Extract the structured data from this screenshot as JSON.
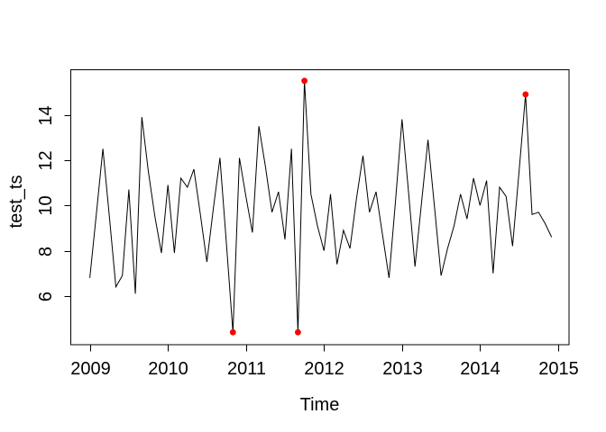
{
  "figure": {
    "background": "#FFFFFF",
    "axis_color": "#000000"
  },
  "chart_data": {
    "type": "line",
    "title": "",
    "xlabel": "Time",
    "ylabel": "test_ts",
    "x_ticks": [
      2009,
      2010,
      2011,
      2012,
      2013,
      2014,
      2015
    ],
    "y_ticks": [
      6,
      8,
      10,
      12,
      14
    ],
    "xlim": [
      2008.75,
      2015.14
    ],
    "ylim": [
      3.85,
      16.01
    ],
    "x_start": 2009.0,
    "frequency": 12,
    "grid": false,
    "legend": null,
    "series": [
      {
        "name": "test_ts",
        "color": "#000000",
        "values": [
          6.8,
          9.6,
          12.5,
          9.5,
          6.4,
          6.9,
          10.7,
          6.1,
          13.9,
          11.5,
          9.5,
          7.9,
          10.9,
          7.9,
          11.2,
          10.8,
          11.6,
          9.6,
          7.5,
          9.9,
          12.1,
          8.3,
          4.4,
          12.1,
          10.4,
          8.8,
          13.5,
          11.7,
          9.7,
          10.6,
          8.5,
          12.5,
          4.4,
          15.5,
          10.5,
          9.1,
          8.0,
          10.5,
          7.4,
          8.9,
          8.1,
          10.3,
          12.2,
          9.7,
          10.6,
          8.7,
          6.8,
          10.2,
          13.8,
          10.6,
          7.3,
          10.1,
          12.9,
          9.9,
          6.9,
          8.1,
          9.1,
          10.5,
          9.4,
          11.2,
          10.0,
          11.1,
          7.0,
          10.8,
          10.4,
          8.2,
          11.5,
          14.9,
          9.6,
          9.7,
          9.2,
          8.6
        ]
      }
    ],
    "outliers": {
      "color": "#FF0000",
      "marker": "filled-circle",
      "points": [
        {
          "time": 2010.8333,
          "value": 4.4
        },
        {
          "time": 2011.6667,
          "value": 4.4
        },
        {
          "time": 2011.75,
          "value": 15.5
        },
        {
          "time": 2014.5833,
          "value": 14.9
        }
      ]
    }
  }
}
